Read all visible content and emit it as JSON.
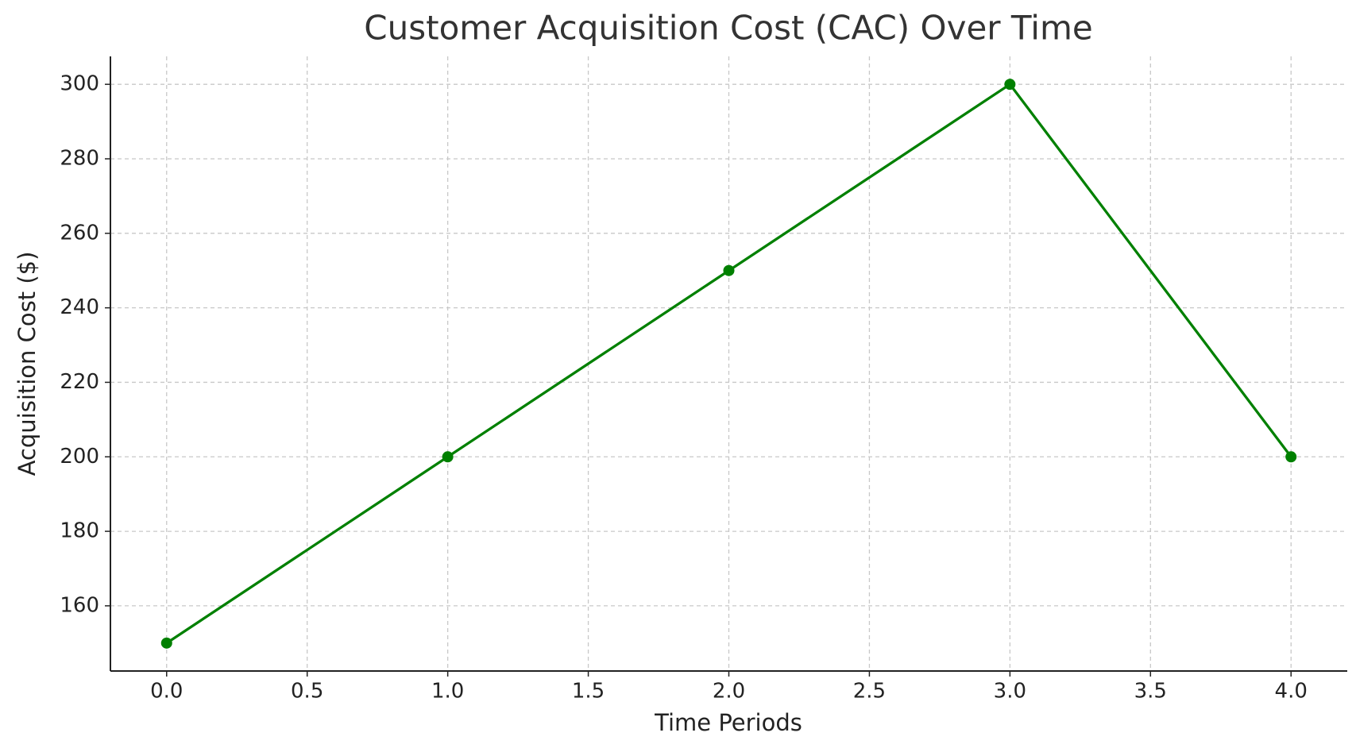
{
  "chart_data": {
    "type": "line",
    "title": "Customer Acquisition Cost (CAC) Over Time",
    "x_label": "Time Periods",
    "y_label": "Acquisition Cost ($)",
    "x": [
      0,
      1,
      2,
      3,
      4
    ],
    "series": [
      {
        "name": "CAC",
        "color": "#008000",
        "values": [
          150,
          200,
          250,
          300,
          200
        ]
      }
    ],
    "xlim": [
      -0.2,
      4.2
    ],
    "ylim": [
      142.5,
      307.5
    ],
    "xticks": [
      {
        "value": 0,
        "label": "0.0"
      },
      {
        "value": 0.5,
        "label": "0.5"
      },
      {
        "value": 1,
        "label": "1.0"
      },
      {
        "value": 1.5,
        "label": "1.5"
      },
      {
        "value": 2,
        "label": "2.0"
      },
      {
        "value": 2.5,
        "label": "2.5"
      },
      {
        "value": 3,
        "label": "3.0"
      },
      {
        "value": 3.5,
        "label": "3.5"
      },
      {
        "value": 4,
        "label": "4.0"
      }
    ],
    "yticks": [
      160,
      180,
      200,
      220,
      240,
      260,
      280,
      300
    ],
    "grid": true
  }
}
